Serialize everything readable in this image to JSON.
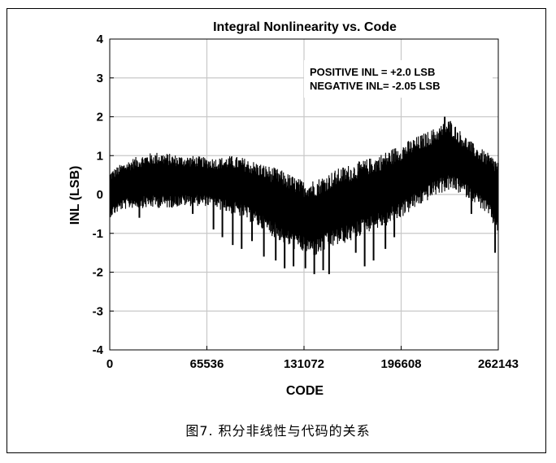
{
  "chart_data": {
    "type": "line",
    "title": "Integral Nonlinearity vs. Code",
    "xlabel": "CODE",
    "ylabel": "INL (LSB)",
    "xlim": [
      0,
      262143
    ],
    "ylim": [
      -4,
      4
    ],
    "xticks": [
      0,
      65536,
      131072,
      196608,
      262143
    ],
    "yticks": [
      4,
      3,
      2,
      1,
      0,
      -1,
      -2,
      -3,
      -4
    ],
    "grid": true,
    "annotations": [
      "POSITIVE INL = +2.0 LSB",
      "NEGATIVE INL= -2.05 LSB"
    ],
    "series": [
      {
        "color": "#000000",
        "envelope": {
          "x": [
            0,
            8192,
            16384,
            24576,
            32768,
            40960,
            49152,
            57344,
            65536,
            73728,
            81920,
            90112,
            98304,
            106496,
            114688,
            122880,
            131072,
            139264,
            147456,
            155648,
            163840,
            172032,
            180224,
            188416,
            196608,
            204800,
            212992,
            221184,
            229376,
            237568,
            245760,
            253952,
            262143
          ],
          "upper": [
            0.6,
            0.8,
            0.95,
            1.05,
            1.1,
            1.05,
            1.0,
            1.0,
            0.95,
            0.95,
            1.0,
            0.95,
            0.85,
            0.75,
            0.65,
            0.5,
            0.35,
            0.4,
            0.55,
            0.7,
            0.8,
            0.9,
            1.0,
            1.15,
            1.3,
            1.45,
            1.6,
            1.75,
            1.95,
            1.6,
            1.3,
            1.1,
            0.9
          ],
          "lower": [
            -0.6,
            -0.4,
            -0.35,
            -0.35,
            -0.35,
            -0.35,
            -0.3,
            -0.3,
            -0.3,
            -0.4,
            -0.5,
            -0.6,
            -0.8,
            -1.0,
            -1.2,
            -1.4,
            -1.5,
            -1.6,
            -1.4,
            -1.3,
            -1.2,
            -1.0,
            -0.9,
            -0.8,
            -0.6,
            -0.4,
            -0.2,
            0.0,
            0.1,
            0.0,
            -0.2,
            -0.5,
            -1.0
          ]
        },
        "spikes": [
          {
            "x": 20000,
            "y": -0.6
          },
          {
            "x": 56000,
            "y": -0.5
          },
          {
            "x": 70000,
            "y": -0.9
          },
          {
            "x": 76000,
            "y": -1.1
          },
          {
            "x": 83000,
            "y": -1.3
          },
          {
            "x": 89000,
            "y": -1.4
          },
          {
            "x": 96000,
            "y": -1.2
          },
          {
            "x": 104000,
            "y": -1.6
          },
          {
            "x": 112000,
            "y": -1.7
          },
          {
            "x": 118000,
            "y": -1.9
          },
          {
            "x": 124000,
            "y": -1.85
          },
          {
            "x": 132000,
            "y": -1.9
          },
          {
            "x": 138000,
            "y": -2.05
          },
          {
            "x": 144000,
            "y": -1.95
          },
          {
            "x": 148000,
            "y": -2.05
          },
          {
            "x": 158000,
            "y": -1.2
          },
          {
            "x": 166000,
            "y": -1.5
          },
          {
            "x": 172000,
            "y": -1.85
          },
          {
            "x": 178000,
            "y": -1.7
          },
          {
            "x": 186000,
            "y": -1.4
          },
          {
            "x": 192000,
            "y": -1.1
          },
          {
            "x": 226000,
            "y": 2.0
          },
          {
            "x": 244000,
            "y": -0.5
          },
          {
            "x": 260000,
            "y": -1.5
          }
        ]
      }
    ]
  },
  "caption": "图7. 积分非线性与代码的关系"
}
